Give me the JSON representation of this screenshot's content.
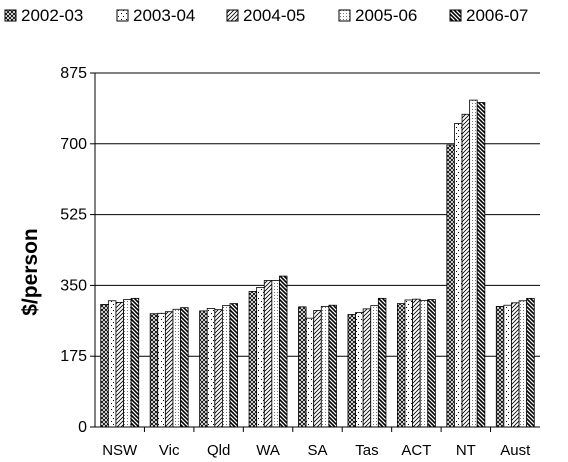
{
  "chart_data": {
    "type": "bar",
    "title": "",
    "xlabel": "",
    "ylabel": "$/person",
    "ylim": [
      0,
      875
    ],
    "yticks": [
      0,
      175,
      350,
      525,
      700,
      875
    ],
    "grid": true,
    "legend_position": "top",
    "categories": [
      "NSW",
      "Vic",
      "Qld",
      "WA",
      "SA",
      "Tas",
      "ACT",
      "NT",
      "Aust"
    ],
    "series": [
      {
        "name": "2002-03",
        "pattern": "crosshatch",
        "values": [
          303,
          280,
          287,
          335,
          297,
          278,
          305,
          697,
          298
        ]
      },
      {
        "name": "2003-04",
        "pattern": "dots-sparse",
        "values": [
          312,
          281,
          293,
          345,
          269,
          283,
          314,
          750,
          301
        ]
      },
      {
        "name": "2004-05",
        "pattern": "diagonal-lines",
        "values": [
          308,
          285,
          290,
          362,
          288,
          292,
          316,
          773,
          307
        ]
      },
      {
        "name": "2005-06",
        "pattern": "dots-fine",
        "values": [
          315,
          291,
          300,
          362,
          298,
          300,
          313,
          808,
          312
        ]
      },
      {
        "name": "2006-07",
        "pattern": "diagonal-bold",
        "values": [
          318,
          295,
          305,
          373,
          301,
          318,
          315,
          802,
          318
        ]
      }
    ]
  }
}
